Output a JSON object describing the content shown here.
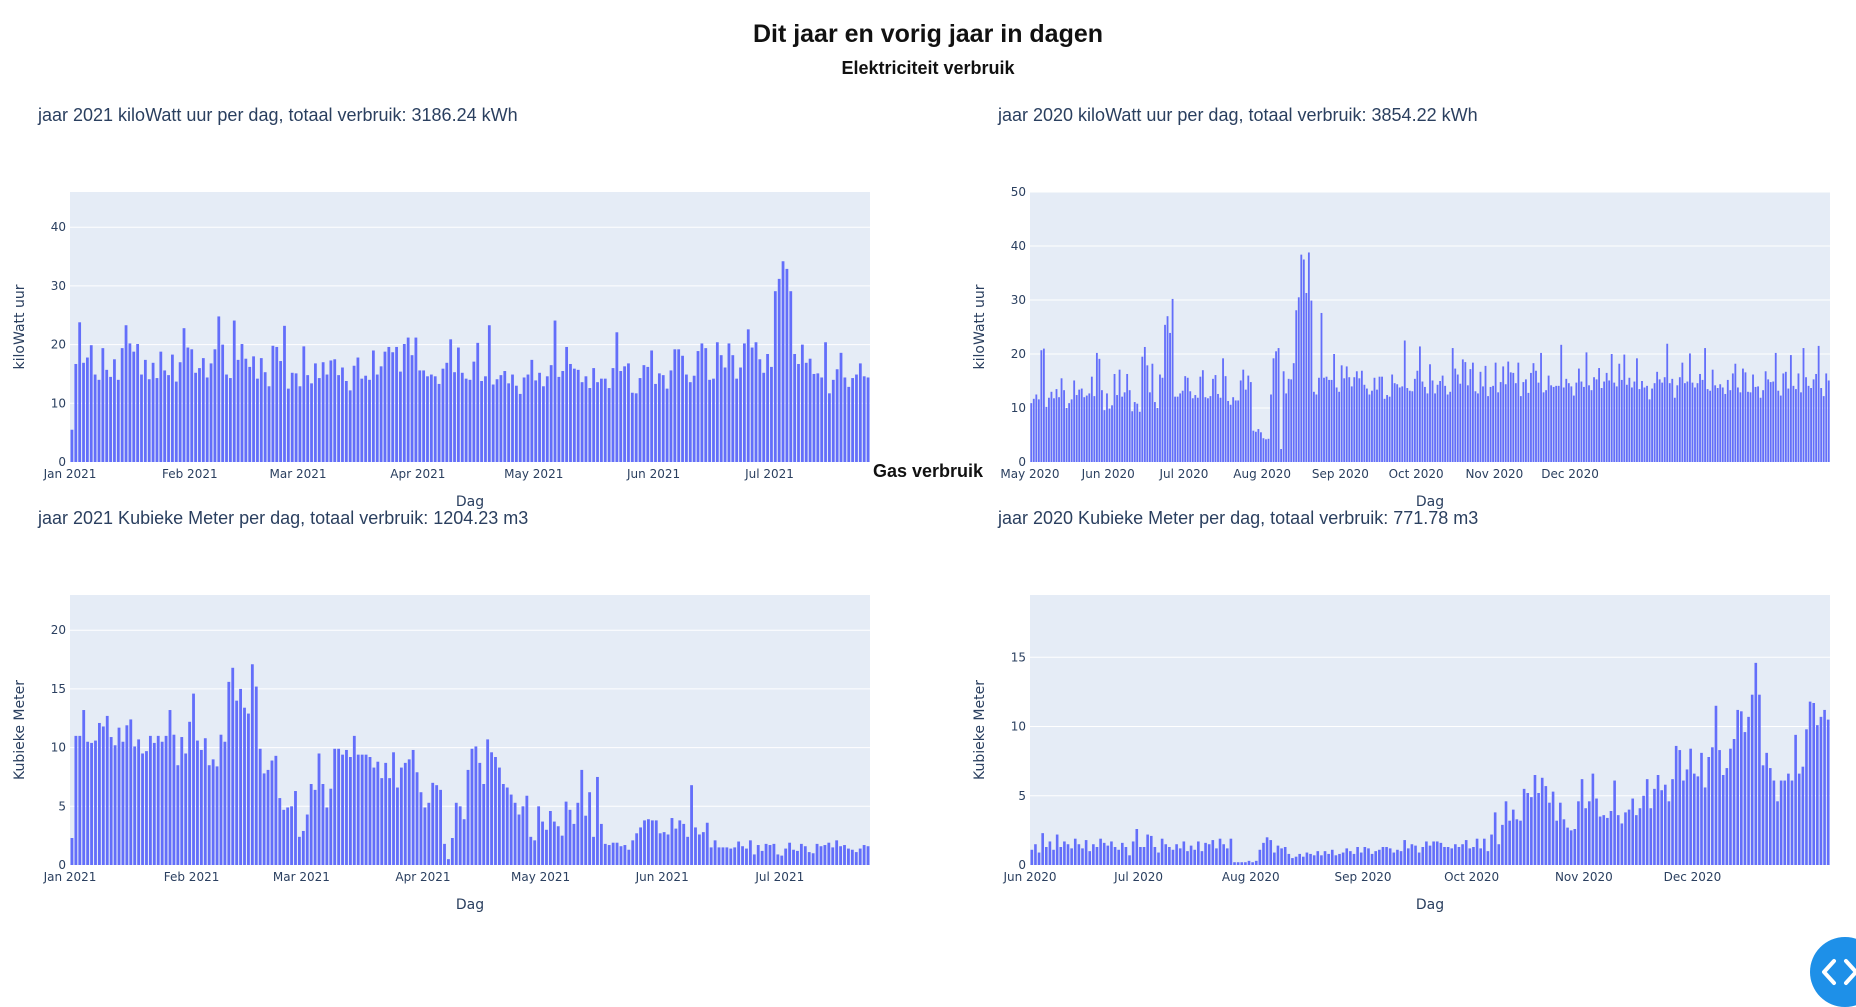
{
  "page": {
    "title": "Dit jaar en vorig jaar in dagen",
    "sections": {
      "electricity": "Elektriciteit verbruik",
      "gas": "Gas verbruik"
    }
  },
  "colors": {
    "bar": "#636efa",
    "plot_bg": "#e5ecf6",
    "grid": "#ffffff",
    "text": "#2a3f5f",
    "scroll_button": "#1e90e8"
  },
  "scroll_button": {
    "icon": "chevrons-left-right-icon"
  },
  "chart_data": [
    {
      "id": "e2021",
      "type": "bar",
      "title": "jaar 2021 kiloWatt uur per dag, totaal verbruik: 3186.24 kWh",
      "xlabel": "Dag",
      "ylabel": "kiloWatt uur",
      "x_start": "2021-01-01",
      "ylim": [
        0,
        46
      ],
      "yticks": [
        0,
        10,
        20,
        30,
        40
      ],
      "xticks": [
        {
          "date": "2021-01-01",
          "label": "Jan 2021"
        },
        {
          "date": "2021-02-01",
          "label": "Feb 2021"
        },
        {
          "date": "2021-03-01",
          "label": "Mar 2021"
        },
        {
          "date": "2021-04-01",
          "label": "Apr 2021"
        },
        {
          "date": "2021-05-01",
          "label": "May 2021"
        },
        {
          "date": "2021-06-01",
          "label": "Jun 2021"
        },
        {
          "date": "2021-07-01",
          "label": "Jul 2021"
        }
      ],
      "values": [
        5.5,
        16.7,
        23.8,
        16.9,
        17.8,
        19.9,
        14.9,
        14,
        19.4,
        15.7,
        14.5,
        17.5,
        14,
        19.4,
        23.3,
        20.2,
        18.8,
        20.1,
        14.9,
        17.4,
        14.1,
        16.9,
        14.3,
        18.8,
        15.6,
        14.8,
        18.3,
        13.7,
        17,
        22.8,
        19.5,
        19.2,
        15.2,
        16,
        17.7,
        14.4,
        16.8,
        19.2,
        24.8,
        20,
        14.9,
        14.3,
        24.1,
        17.4,
        20.1,
        17.6,
        16.2,
        18,
        14.2,
        17.7,
        15.3,
        12.9,
        19.8,
        19.6,
        17.2,
        23.2,
        12.5,
        15.2,
        15.1,
        12.9,
        19.7,
        14.8,
        13.4,
        16.8,
        14.3,
        17,
        14.9,
        17.3,
        17.5,
        14.8,
        16.1,
        13.8,
        12.2,
        16.4,
        17.8,
        14.2,
        14.7,
        14,
        19,
        14.9,
        16.3,
        18.8,
        19.6,
        18.7,
        19.6,
        15.4,
        20.1,
        21.2,
        18.2,
        21.2,
        15.6,
        15.6,
        14.6,
        14.9,
        14.6,
        13.3,
        15.9,
        16.9,
        20.9,
        15.3,
        19.5,
        15.2,
        14.2,
        14,
        17.1,
        20.3,
        13.8,
        14.6,
        23.3,
        13.2,
        14.1,
        14.8,
        15.5,
        13.4,
        14.9,
        13,
        11.6,
        14.4,
        14.9,
        17.4,
        13.9,
        15.2,
        12.9,
        14.6,
        16.5,
        24.1,
        14.5,
        15.5,
        19.6,
        16.7,
        15.9,
        15.7,
        13.6,
        14.6,
        12.6,
        16,
        13.6,
        14.2,
        14.2,
        12.6,
        16,
        22.1,
        15.5,
        16.3,
        16.8,
        11.8,
        11.7,
        14.3,
        16.5,
        16.2,
        19,
        13.3,
        15.1,
        14.8,
        12.5,
        15.6,
        19.2,
        19.2,
        18.1,
        14.9,
        13.6,
        14.7,
        18.9,
        20.2,
        19.4,
        14,
        14.2,
        20.4,
        18.2,
        16.1,
        20.2,
        18.2,
        14.2,
        16.1,
        20.2,
        22.6,
        19.5,
        20.4,
        17.5,
        15.2,
        18.4,
        16.2,
        29.1,
        31.2,
        34.2,
        32.9,
        29.1,
        18.4,
        16.7,
        20,
        16.9,
        17.6,
        15,
        15.1,
        14.4,
        20.4,
        11.7,
        14,
        15.8,
        18.6,
        14.4,
        12.8,
        14.3,
        14.9,
        16.8,
        14.6,
        14.4
      ]
    },
    {
      "id": "e2020",
      "type": "bar",
      "title": "jaar 2020 kiloWatt uur per dag, totaal verbruik: 3854.22 kWh",
      "xlabel": "Dag",
      "ylabel": "kiloWatt uur",
      "x_start": "2020-05-01",
      "ylim": [
        0,
        50
      ],
      "yticks": [
        0,
        10,
        20,
        30,
        40,
        50
      ],
      "xticks": [
        {
          "date": "2020-05-01",
          "label": "May 2020"
        },
        {
          "date": "2020-06-01",
          "label": "Jun 2020"
        },
        {
          "date": "2020-07-01",
          "label": "Jul 2020"
        },
        {
          "date": "2020-08-01",
          "label": "Aug 2020"
        },
        {
          "date": "2020-09-01",
          "label": "Sep 2020"
        },
        {
          "date": "2020-10-01",
          "label": "Oct 2020"
        },
        {
          "date": "2020-11-01",
          "label": "Nov 2020"
        },
        {
          "date": "2020-12-01",
          "label": "Dec 2020"
        }
      ],
      "values": [
        10.9,
        11.7,
        12.5,
        11.6,
        20.7,
        21,
        10.2,
        11.9,
        13,
        11.8,
        13.5,
        12,
        15.5,
        13.3,
        10,
        10.9,
        11.6,
        15.1,
        12.4,
        13.4,
        13.6,
        12,
        12.3,
        12.7,
        15.8,
        12.2,
        20.2,
        19.1,
        13.3,
        9.6,
        12.7,
        9.9,
        10.5,
        16.3,
        12.4,
        17.1,
        12.1,
        12.9,
        16.3,
        13.3,
        9.4,
        11.1,
        10.8,
        9.3,
        19.5,
        21.3,
        17.9,
        12.9,
        18.2,
        11.1,
        10,
        16.2,
        15.6,
        25.4,
        27,
        23.9,
        30.2,
        12.1,
        12.1,
        12.7,
        13.2,
        15.9,
        15.6,
        13.1,
        11.8,
        12.4,
        11.9,
        15.8,
        17,
        12,
        11.8,
        12.2,
        15.4,
        16.1,
        12.6,
        11.9,
        19.2,
        15.9,
        11.3,
        10.6,
        12,
        11.4,
        11.4,
        15.1,
        17.1,
        13.4,
        16,
        14.8,
        5.8,
        5.6,
        6.1,
        5.5,
        4.4,
        4.2,
        4.3,
        12.5,
        19.2,
        20.5,
        21.1,
        2.4,
        16.8,
        12.7,
        15.4,
        15.3,
        18.3,
        28.1,
        30.5,
        38.4,
        37.5,
        31.3,
        38.8,
        29.9,
        13,
        12.5,
        15.6,
        27.6,
        15.6,
        15.8,
        15.2,
        15.2,
        20,
        13.8,
        13,
        17.9,
        15.5,
        17.7,
        15.7,
        14,
        15.7,
        16.8,
        15.5,
        16.9,
        14.3,
        13.6,
        12.5,
        13.2,
        15.6,
        13.4,
        15.8,
        15.8,
        11.7,
        12.4,
        12.1,
        16.2,
        14.6,
        14.4,
        13.8,
        14,
        22.5,
        13.7,
        13.2,
        13.1,
        15.4,
        16.9,
        21.4,
        14.9,
        13.9,
        12.7,
        18.1,
        15.1,
        12.7,
        14.3,
        15,
        16,
        14.1,
        12.5,
        13,
        21.1,
        17.3,
        16.2,
        14.5,
        19,
        18.5,
        14.2,
        17.2,
        18.4,
        13.1,
        12.7,
        16.7,
        14,
        17.8,
        12.2,
        13.9,
        14.1,
        18.4,
        12.9,
        14.8,
        17.7,
        14.4,
        18.6,
        16.6,
        16.5,
        14.6,
        18.4,
        12.2,
        14.8,
        15.3,
        12.8,
        16.5,
        18.3,
        16.9,
        14.7,
        20.2,
        12.9,
        13.3,
        16,
        14.2,
        13.9,
        14.1,
        14.1,
        21.7,
        13.8,
        15.4,
        14.6,
        14,
        12.3,
        14.7,
        17.3,
        14.9,
        13.9,
        20.3,
        14.2,
        13.3,
        15.7,
        15.3,
        17.4,
        13.7,
        14.9,
        16.5,
        15.1,
        20,
        14.7,
        14,
        18.2,
        15.2,
        19.9,
        14.3,
        15.6,
        13.8,
        14.9,
        19.2,
        13.5,
        15,
        13.8,
        14.1,
        11.6,
        13.6,
        14.6,
        16.7,
        15.3,
        14.7,
        15.7,
        21.9,
        14.6,
        15.4,
        11.9,
        14.2,
        15.7,
        18.4,
        14.6,
        14.9,
        20.1,
        14.7,
        13.8,
        14.6,
        16.3,
        15.2,
        21.1,
        13.5,
        13.2,
        17.1,
        14.2,
        13.7,
        14.4,
        13.8,
        12.6,
        15.2,
        13.3,
        16.4,
        18.2,
        13.8,
        12.9,
        17.3,
        16.6,
        13,
        12.9,
        16.2,
        13.9,
        14,
        11.9,
        13.3,
        16.8,
        15.3,
        14.8,
        14.9,
        20.2,
        13.2,
        12.3,
        16.4,
        16.7,
        13.6,
        19.8,
        14.1,
        13.5,
        16.4,
        12.9,
        21.1,
        15.7,
        14.1,
        13.7,
        15.3,
        16.3,
        21.5,
        13.7,
        12.2,
        16.4,
        15.1
      ]
    },
    {
      "id": "g2021",
      "type": "bar",
      "title": "jaar 2021 Kubieke Meter per dag, totaal verbruik: 1204.23 m3",
      "xlabel": "Dag",
      "ylabel": "Kubieke Meter",
      "x_start": "2021-01-01",
      "ylim": [
        0,
        23
      ],
      "yticks": [
        0,
        5,
        10,
        15,
        20
      ],
      "xticks": [
        {
          "date": "2021-01-01",
          "label": "Jan 2021"
        },
        {
          "date": "2021-02-01",
          "label": "Feb 2021"
        },
        {
          "date": "2021-03-01",
          "label": "Mar 2021"
        },
        {
          "date": "2021-04-01",
          "label": "Apr 2021"
        },
        {
          "date": "2021-05-01",
          "label": "May 2021"
        },
        {
          "date": "2021-06-01",
          "label": "Jun 2021"
        },
        {
          "date": "2021-07-01",
          "label": "Jul 2021"
        }
      ],
      "values": [
        2.3,
        11,
        11,
        13.2,
        10.5,
        10.4,
        10.6,
        12.1,
        11.8,
        12.7,
        10.9,
        10.2,
        11.7,
        10.5,
        11.9,
        12.4,
        10.1,
        10.7,
        9.5,
        9.7,
        11,
        10.4,
        11,
        10.5,
        11,
        13.2,
        11.1,
        8.5,
        10.9,
        9.5,
        12.2,
        14.6,
        10.6,
        9.8,
        10.8,
        8.5,
        9,
        8.4,
        11.1,
        10.5,
        15.6,
        16.8,
        14,
        15,
        13.4,
        12.9,
        17.1,
        15.2,
        9.9,
        7.8,
        8.1,
        8.9,
        9.3,
        5.7,
        4.7,
        4.9,
        5,
        6.3,
        2.4,
        2.9,
        4.3,
        6.9,
        6.4,
        9.5,
        6.9,
        4.9,
        6.5,
        9.9,
        9.9,
        9.4,
        9.8,
        9.2,
        11,
        9.4,
        9.4,
        9.4,
        9.2,
        8.3,
        8.8,
        7.4,
        8.7,
        7.4,
        9.6,
        6.6,
        8.3,
        8.7,
        9,
        9.8,
        7.9,
        6.2,
        4.9,
        5.3,
        7,
        6.8,
        6.4,
        1.8,
        0.5,
        2.3,
        5.3,
        5,
        3.9,
        8.1,
        9.9,
        10.1,
        8.7,
        6.9,
        10.7,
        9.6,
        9.2,
        8.3,
        6.9,
        6.6,
        6,
        5.3,
        4.3,
        5,
        5.9,
        2.4,
        2.1,
        5,
        3.7,
        3,
        4.6,
        3.7,
        3.3,
        2.5,
        5.4,
        4.7,
        3.5,
        5.3,
        8.1,
        4.2,
        6.2,
        2.4,
        7.5,
        3.5,
        1.8,
        1.7,
        1.9,
        1.9,
        1.6,
        1.7,
        1.3,
        2.1,
        2.7,
        3.2,
        3.8,
        3.9,
        3.8,
        3.8,
        2.7,
        2.8,
        2.6,
        4,
        3.1,
        3.8,
        3.5,
        2.4,
        6.8,
        3.2,
        2.6,
        2.8,
        3.6,
        1.5,
        2.1,
        1.5,
        1.5,
        1.5,
        1.4,
        1.5,
        2,
        1.6,
        1.4,
        2.1,
        0.9,
        1.7,
        1.2,
        1.8,
        1.7,
        1.8,
        0.9,
        0.8,
        1.4,
        1.9,
        1.3,
        1.2,
        1.8,
        1.6,
        1.1,
        1,
        1.8,
        1.6,
        1.7,
        1.9,
        1.5,
        2.1,
        1.6,
        1.7,
        1.4,
        1.3,
        1.1,
        1.4,
        1.7,
        1.6
      ]
    },
    {
      "id": "g2020",
      "type": "bar",
      "title": "jaar 2020 Kubieke Meter per dag, totaal verbruik: 771.78 m3",
      "xlabel": "Dag",
      "ylabel": "Kubieke Meter",
      "x_start": "2020-06-01",
      "ylim": [
        0,
        19.5
      ],
      "yticks": [
        0,
        5,
        10,
        15
      ],
      "xticks": [
        {
          "date": "2020-06-01",
          "label": "Jun 2020"
        },
        {
          "date": "2020-07-01",
          "label": "Jul 2020"
        },
        {
          "date": "2020-08-01",
          "label": "Aug 2020"
        },
        {
          "date": "2020-09-01",
          "label": "Sep 2020"
        },
        {
          "date": "2020-10-01",
          "label": "Oct 2020"
        },
        {
          "date": "2020-11-01",
          "label": "Nov 2020"
        },
        {
          "date": "2020-12-01",
          "label": "Dec 2020"
        }
      ],
      "values": [
        1.1,
        1.5,
        0.9,
        2.3,
        1.3,
        1.7,
        1.1,
        2.2,
        1.3,
        1.7,
        1.5,
        1.2,
        1.9,
        1.5,
        1.2,
        1.8,
        1,
        1.5,
        1.3,
        1.9,
        1.6,
        1.4,
        1.7,
        1.3,
        1.1,
        1.6,
        1.3,
        0.7,
        1.7,
        2.6,
        1.3,
        1.3,
        2.2,
        2.1,
        1.3,
        0.9,
        1.9,
        1.5,
        1.3,
        1.1,
        1.5,
        1.2,
        1.7,
        1,
        1.4,
        1.1,
        1.7,
        1,
        1.6,
        1.5,
        1.8,
        1.2,
        1.9,
        1.5,
        1.2,
        1.9,
        0.2,
        0.2,
        0.2,
        0.2,
        0.3,
        0.2,
        0.3,
        1.1,
        1.6,
        2,
        1.8,
        0.9,
        1.4,
        1.2,
        1.3,
        0.8,
        0.5,
        0.6,
        0.8,
        0.6,
        0.9,
        0.8,
        0.7,
        1,
        0.7,
        1,
        0.8,
        1.1,
        0.7,
        0.8,
        0.9,
        1.2,
        1,
        0.8,
        1.3,
        0.9,
        1.3,
        1.2,
        0.8,
        1,
        1.1,
        1.3,
        1.3,
        1.2,
        0.9,
        1.1,
        1,
        1.8,
        1.2,
        1.5,
        1.4,
        0.9,
        1.3,
        1.7,
        1.4,
        1.7,
        1.7,
        1.6,
        1.3,
        1.3,
        1.2,
        1.5,
        1.3,
        1.5,
        1.8,
        1.2,
        1.3,
        1.9,
        1.2,
        1.9,
        1,
        2.2,
        3.8,
        1.5,
        2.9,
        4.6,
        3.2,
        4,
        3.3,
        3.2,
        5.5,
        5.2,
        4.9,
        6.5,
        5.2,
        6.3,
        5.7,
        4.5,
        5.3,
        3.2,
        4.5,
        3.3,
        2.7,
        2.5,
        2.6,
        4.6,
        6.2,
        4.1,
        4.6,
        6.6,
        4.8,
        3.5,
        3.6,
        3.4,
        3.9,
        6.1,
        3.6,
        3,
        3.8,
        4,
        4.8,
        3.6,
        4.1,
        5,
        6.2,
        4.1,
        5.5,
        6.5,
        5.4,
        5.8,
        4.6,
        6.2,
        8.6,
        8.3,
        6.1,
        6.9,
        8.4,
        6.6,
        6.4,
        8.1,
        5.6,
        7.8,
        8.5,
        11.5,
        8.3,
        6.5,
        7,
        8.4,
        9.1,
        11.2,
        11.1,
        9.6,
        10.7,
        12.3,
        14.6,
        12.3,
        7.2,
        8.1,
        7,
        6.1,
        4.6,
        6.1,
        6.1,
        6.6,
        6.1,
        9.4,
        6.6,
        7.1,
        9.8,
        11.8,
        11.7,
        10.1,
        10.7,
        11.2,
        10.5
      ]
    }
  ]
}
